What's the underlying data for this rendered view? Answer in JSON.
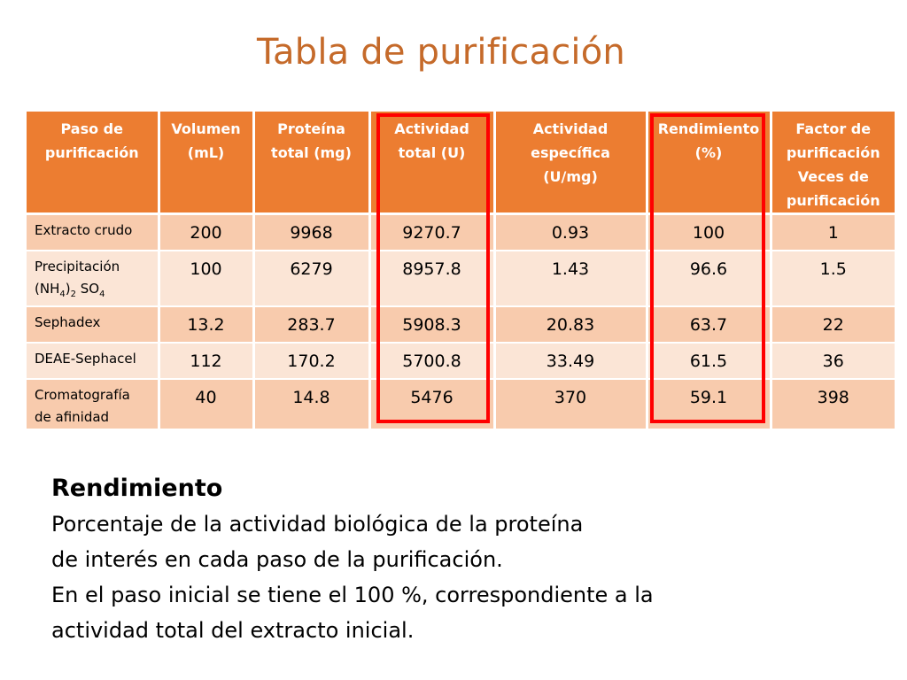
{
  "title": "Tabla de purificación",
  "table": {
    "headers": [
      [
        "Paso de",
        "purificación"
      ],
      [
        "Volumen",
        "(mL)"
      ],
      [
        "Proteína",
        "total (mg)"
      ],
      [
        "Actividad",
        "total (U)"
      ],
      [
        "Actividad",
        "específica",
        "(U/mg)"
      ],
      [
        "Rendimiento",
        "(%)"
      ],
      [
        "Factor de",
        "purificación",
        "Veces de",
        "purificación"
      ]
    ],
    "rows": [
      {
        "step": {
          "l1": "Extracto crudo"
        },
        "values": [
          "200",
          "9968",
          "9270.7",
          "0.93",
          "100",
          "1"
        ]
      },
      {
        "step": {
          "l1": "Precipitación",
          "a": "(NH",
          "s1": "4",
          "b": ")",
          "s2": "2",
          "c": " SO",
          "s3": "4"
        },
        "values": [
          "100",
          "6279",
          "8957.8",
          "1.43",
          "96.6",
          "1.5"
        ]
      },
      {
        "step": {
          "l1": "Sephadex"
        },
        "values": [
          "13.2",
          "283.7",
          "5908.3",
          "20.83",
          "63.7",
          "22"
        ]
      },
      {
        "step": {
          "l1": "DEAE-Sephacel"
        },
        "values": [
          "112",
          "170.2",
          "5700.8",
          "33.49",
          "61.5",
          "36"
        ]
      },
      {
        "step": {
          "l1": "Cromatografía",
          "l2": "de afinidad"
        },
        "values": [
          "40",
          "14.8",
          "5476",
          "370",
          "59.1",
          "398"
        ]
      }
    ],
    "highlight_color": "#ff0000",
    "header_color": "#ec7d31"
  },
  "definition": {
    "heading": "Rendimiento",
    "lines": [
      "Porcentaje de la actividad biológica de la proteína",
      "de interés en cada paso de la purificación.",
      "En el paso inicial se tiene el 100 %, correspondiente a la",
      "actividad total del extracto inicial."
    ]
  }
}
